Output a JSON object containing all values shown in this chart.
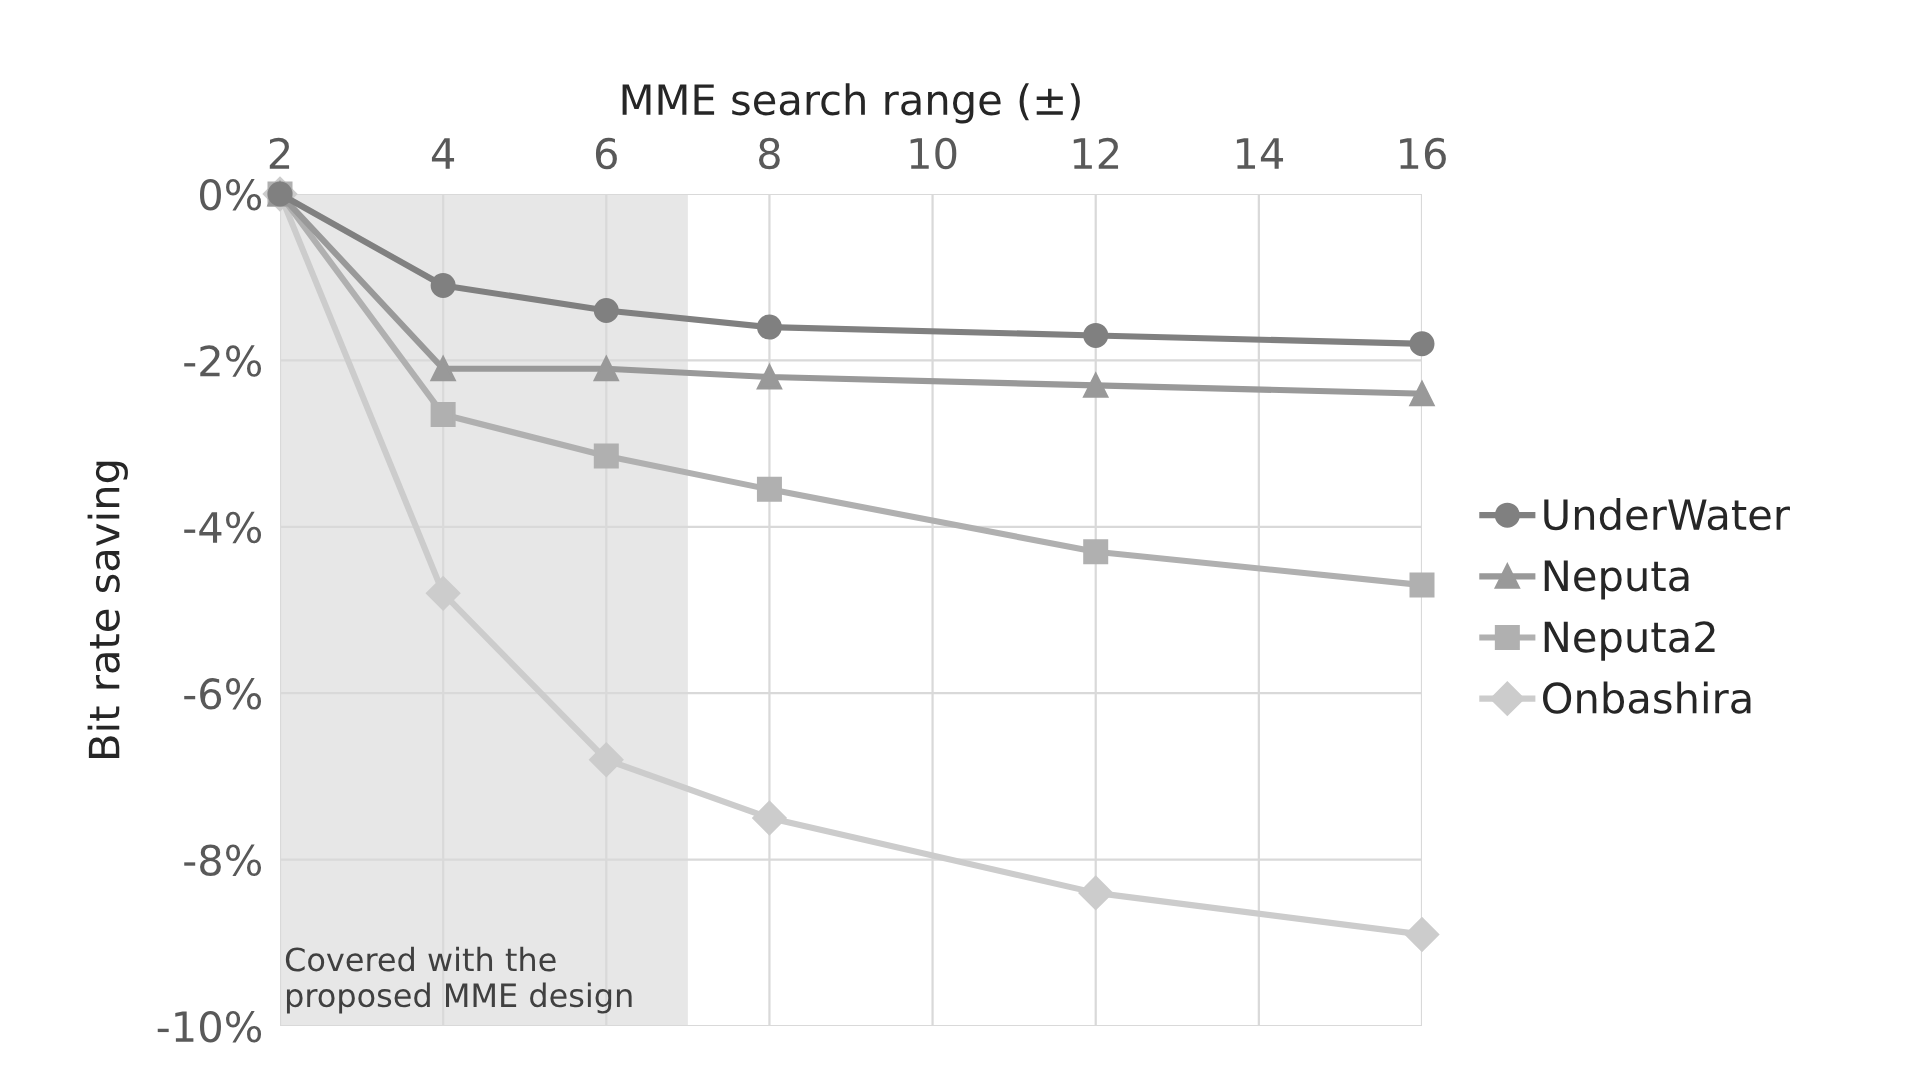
{
  "chart_data": {
    "type": "line",
    "xlabel": "MME search range (±)",
    "ylabel": "Bit rate saving",
    "x": [
      2,
      4,
      6,
      8,
      12,
      16
    ],
    "series": [
      {
        "name": "UnderWater",
        "color": "#808080",
        "marker": "circle",
        "values": [
          0,
          -1.1,
          -1.4,
          -1.6,
          -1.7,
          -1.8
        ]
      },
      {
        "name": "Neputa",
        "color": "#999999",
        "marker": "triangle",
        "values": [
          0,
          -2.1,
          -2.1,
          -2.2,
          -2.3,
          -2.4
        ]
      },
      {
        "name": "Neputa2",
        "color": "#b0b0b0",
        "marker": "square",
        "values": [
          0,
          -2.65,
          -3.15,
          -3.55,
          -4.3,
          -4.7
        ]
      },
      {
        "name": "Onbashira",
        "color": "#cccccc",
        "marker": "diamond",
        "values": [
          0,
          -4.8,
          -6.8,
          -7.5,
          -8.4,
          -8.9
        ]
      }
    ],
    "xlim": [
      2,
      16
    ],
    "xticks": [
      2,
      4,
      6,
      8,
      10,
      12,
      14,
      16
    ],
    "ylim": [
      -10,
      0
    ],
    "yticks": [
      {
        "value": 0,
        "label": "0%"
      },
      {
        "value": -2,
        "label": "-2%"
      },
      {
        "value": -4,
        "label": "-4%"
      },
      {
        "value": -6,
        "label": "-6%"
      },
      {
        "value": -8,
        "label": "-8%"
      },
      {
        "value": -10,
        "label": "-10%"
      }
    ],
    "bands": [
      {
        "axis": "x",
        "from": 2,
        "to": 7,
        "label": "Covered with the\nproposed MME design",
        "color": "#e7e7e7"
      }
    ],
    "grid": true,
    "legend": "right",
    "line_style": "solid"
  }
}
